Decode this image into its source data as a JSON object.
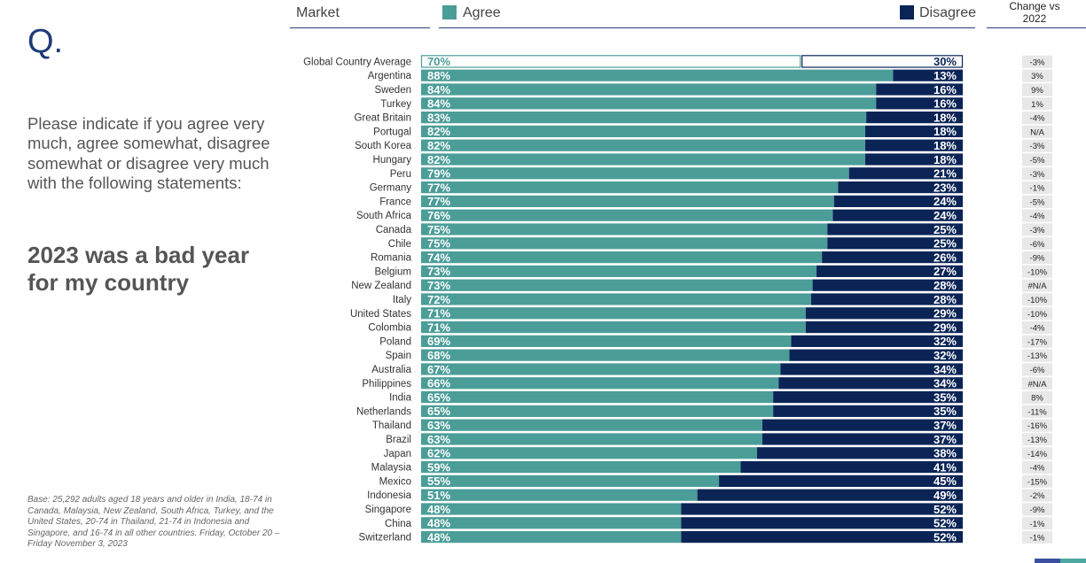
{
  "sidebar": {
    "q_label": "Q.",
    "question": "Please indicate if you agree very much, agree somewhat, disagree somewhat or disagree very much with the following statements:",
    "statement": "2023 was a bad year for my country",
    "base_note": "Base: 25,292 adults aged 18 years and older in India, 18-74 in Canada, Malaysia, New Zealand, South Africa, Turkey, and the United States, 20-74 in Thailand, 21-74 in Indonesia and Singapore, and 16-74 in all other countries. Friday, October 20 – Friday November 3, 2023"
  },
  "header": {
    "market": "Market",
    "agree": "Agree",
    "disagree": "Disagree",
    "change": "Change vs 2022"
  },
  "colors": {
    "agree": "#4b9d98",
    "disagree": "#0b2456",
    "change_bg": "#e8e8e8",
    "q_color": "#1f3a78"
  },
  "chart_data": {
    "type": "bar",
    "stacked": true,
    "orientation": "horizontal",
    "categories": [
      "Global Country Average",
      "Argentina",
      "Sweden",
      "Turkey",
      "Great Britain",
      "Portugal",
      "South Korea",
      "Hungary",
      "Peru",
      "Germany",
      "France",
      "South Africa",
      "Canada",
      "Chile",
      "Romania",
      "Belgium",
      "New Zealand",
      "Italy",
      "United States",
      "Colombia",
      "Poland",
      "Spain",
      "Australia",
      "Philippines",
      "India",
      "Netherlands",
      "Thailand",
      "Brazil",
      "Japan",
      "Malaysia",
      "Mexico",
      "Indonesia",
      "Singapore",
      "China",
      "Switzerland"
    ],
    "series": [
      {
        "name": "Agree",
        "values": [
          70,
          88,
          84,
          84,
          83,
          82,
          82,
          82,
          79,
          77,
          77,
          76,
          75,
          75,
          74,
          73,
          73,
          72,
          71,
          71,
          69,
          68,
          67,
          66,
          65,
          65,
          63,
          63,
          62,
          59,
          55,
          51,
          48,
          48,
          48
        ]
      },
      {
        "name": "Disagree",
        "values": [
          30,
          13,
          16,
          16,
          18,
          18,
          18,
          18,
          21,
          23,
          24,
          24,
          25,
          25,
          26,
          27,
          28,
          28,
          29,
          29,
          32,
          32,
          34,
          34,
          35,
          35,
          37,
          37,
          38,
          41,
          45,
          49,
          52,
          52,
          52
        ]
      }
    ],
    "change_vs_2022": [
      "-3%",
      "3%",
      "9%",
      "1%",
      "-4%",
      "N/A",
      "-3%",
      "-5%",
      "-3%",
      "-1%",
      "-5%",
      "-4%",
      "-3%",
      "-6%",
      "-9%",
      "-10%",
      "#N/A",
      "-10%",
      "-10%",
      "-4%",
      "-17%",
      "-13%",
      "-6%",
      "#N/A",
      "8%",
      "-11%",
      "-16%",
      "-13%",
      "-14%",
      "-4%",
      "-15%",
      "-2%",
      "-9%",
      "-1%",
      "-1%"
    ],
    "xlim": [
      0,
      100
    ]
  }
}
